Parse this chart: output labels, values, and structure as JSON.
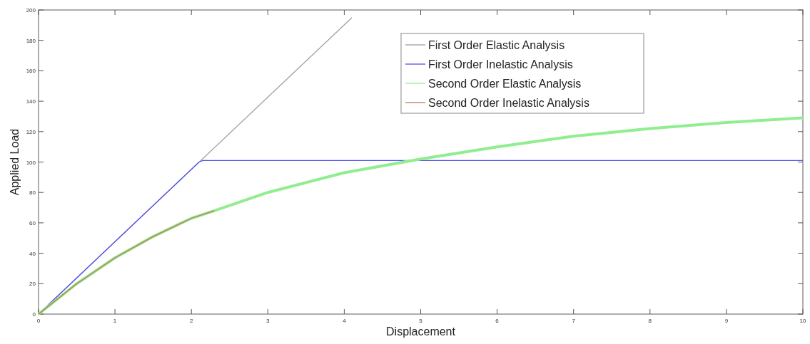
{
  "chart_data": {
    "type": "line",
    "xlabel": "Displacement",
    "ylabel": "Applied Load",
    "xlim": [
      0,
      10
    ],
    "ylim": [
      0,
      200
    ],
    "xticks": [
      0,
      1,
      2,
      3,
      4,
      5,
      6,
      7,
      8,
      9,
      10
    ],
    "yticks": [
      0,
      20,
      40,
      60,
      80,
      100,
      120,
      140,
      160,
      180,
      200
    ],
    "grid": false,
    "legend": "top right",
    "line_style": "solid",
    "marker": "none",
    "series": [
      {
        "name": "First Order Elastic Analysis",
        "color": "#a0a0a0",
        "x": [
          0,
          4.1
        ],
        "values": [
          0,
          195
        ]
      },
      {
        "name": "First Order Inelastic Analysis",
        "color": "#5050f0",
        "x": [
          0,
          2.1,
          2.15,
          10
        ],
        "values": [
          0,
          100,
          101,
          101
        ]
      },
      {
        "name": "Second Order Elastic Analysis",
        "color": "#90ee90",
        "x": [
          0,
          0.5,
          1,
          1.5,
          2,
          2.3,
          3,
          4,
          5,
          6,
          7,
          8,
          9,
          10
        ],
        "values": [
          0,
          20,
          37,
          51,
          63,
          68,
          80,
          93,
          102,
          110,
          117,
          122,
          126,
          129
        ]
      },
      {
        "name": "Second Order Inelastic Analysis",
        "color": "#c87060",
        "x": [
          0,
          0.5,
          1,
          1.5,
          2,
          2.3
        ],
        "values": [
          0,
          20,
          37,
          51,
          63,
          68
        ]
      }
    ]
  }
}
